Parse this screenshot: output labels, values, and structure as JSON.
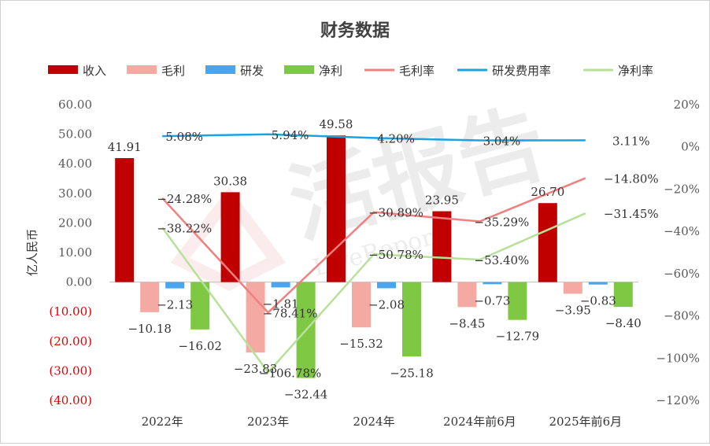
{
  "chart_data": {
    "type": "bar",
    "title": "财务数据",
    "ylabel": "亿人民币",
    "categories": [
      "2022年",
      "2023年",
      "2024年",
      "2024年前6月",
      "2025年前6月"
    ],
    "ylim": [
      -40,
      60
    ],
    "y2lim": [
      -1.2,
      0.2
    ],
    "y_ticks": [
      "60.00",
      "50.00",
      "40.00",
      "30.00",
      "20.00",
      "10.00",
      "0.00",
      "(10.00)",
      "(20.00)",
      "(30.00)",
      "(40.00)"
    ],
    "y2_ticks": [
      "20%",
      "0%",
      "−20%",
      "−40%",
      "−60%",
      "−80%",
      "−100%",
      "−120%"
    ],
    "legend_position": "top",
    "series": [
      {
        "name": "收入",
        "type": "bar",
        "color": "#c00000",
        "values": [
          41.91,
          30.38,
          49.58,
          23.95,
          26.7
        ],
        "labels": [
          "41.91",
          "30.38",
          "49.58",
          "23.95",
          "26.70"
        ]
      },
      {
        "name": "毛利",
        "type": "bar",
        "color": "#f4a9a3",
        "values": [
          -10.18,
          -23.83,
          -15.32,
          -8.45,
          -3.95
        ],
        "labels": [
          "−10.18",
          "−23.83",
          "−15.32",
          "−8.45",
          "−3.95"
        ]
      },
      {
        "name": "研发",
        "type": "bar",
        "color": "#4aa5f0",
        "values": [
          -2.13,
          -1.81,
          -2.08,
          -0.73,
          -0.83
        ],
        "labels": [
          "−2.13",
          "−1.81",
          "−2.08",
          "−0.73",
          "−0.83"
        ]
      },
      {
        "name": "净利",
        "type": "bar",
        "color": "#7ec844",
        "values": [
          -16.02,
          -32.44,
          -25.18,
          -12.79,
          -8.4
        ],
        "labels": [
          "−16.02",
          "−32.44",
          "−25.18",
          "−12.79",
          "−8.40"
        ]
      },
      {
        "name": "毛利率",
        "type": "line",
        "axis": "right",
        "color": "#f08080",
        "label_color": "#e00000",
        "values": [
          -0.2428,
          -0.7841,
          -0.3089,
          -0.3529,
          -0.148
        ],
        "labels": [
          "−24.28%",
          "−78.41%",
          "−30.89%",
          "−35.29%",
          "−14.80%"
        ]
      },
      {
        "name": "研发费用率",
        "type": "line",
        "axis": "right",
        "color": "#1aa3e0",
        "label_color": "#1a7fd0",
        "values": [
          0.0508,
          0.0594,
          0.042,
          0.0304,
          0.0311
        ],
        "labels": [
          "5.08%",
          "5.94%",
          "4.20%",
          "3.04%",
          "3.11%"
        ]
      },
      {
        "name": "净利率",
        "type": "line",
        "axis": "right",
        "color": "#b8e09a",
        "label_color": "#1aa060",
        "values": [
          -0.3822,
          -1.0678,
          -0.5078,
          -0.534,
          -0.3145
        ],
        "labels": [
          "−38.22%",
          "−106.78%",
          "−50.78%",
          "−53.40%",
          "−31.45%"
        ]
      }
    ],
    "colors": {
      "negative_tick": "#e00000",
      "positive_tick": "#595959",
      "grid": "#e3e3e3",
      "axis": "#bfbfbf"
    },
    "watermark": "活报告 LiveReport"
  }
}
